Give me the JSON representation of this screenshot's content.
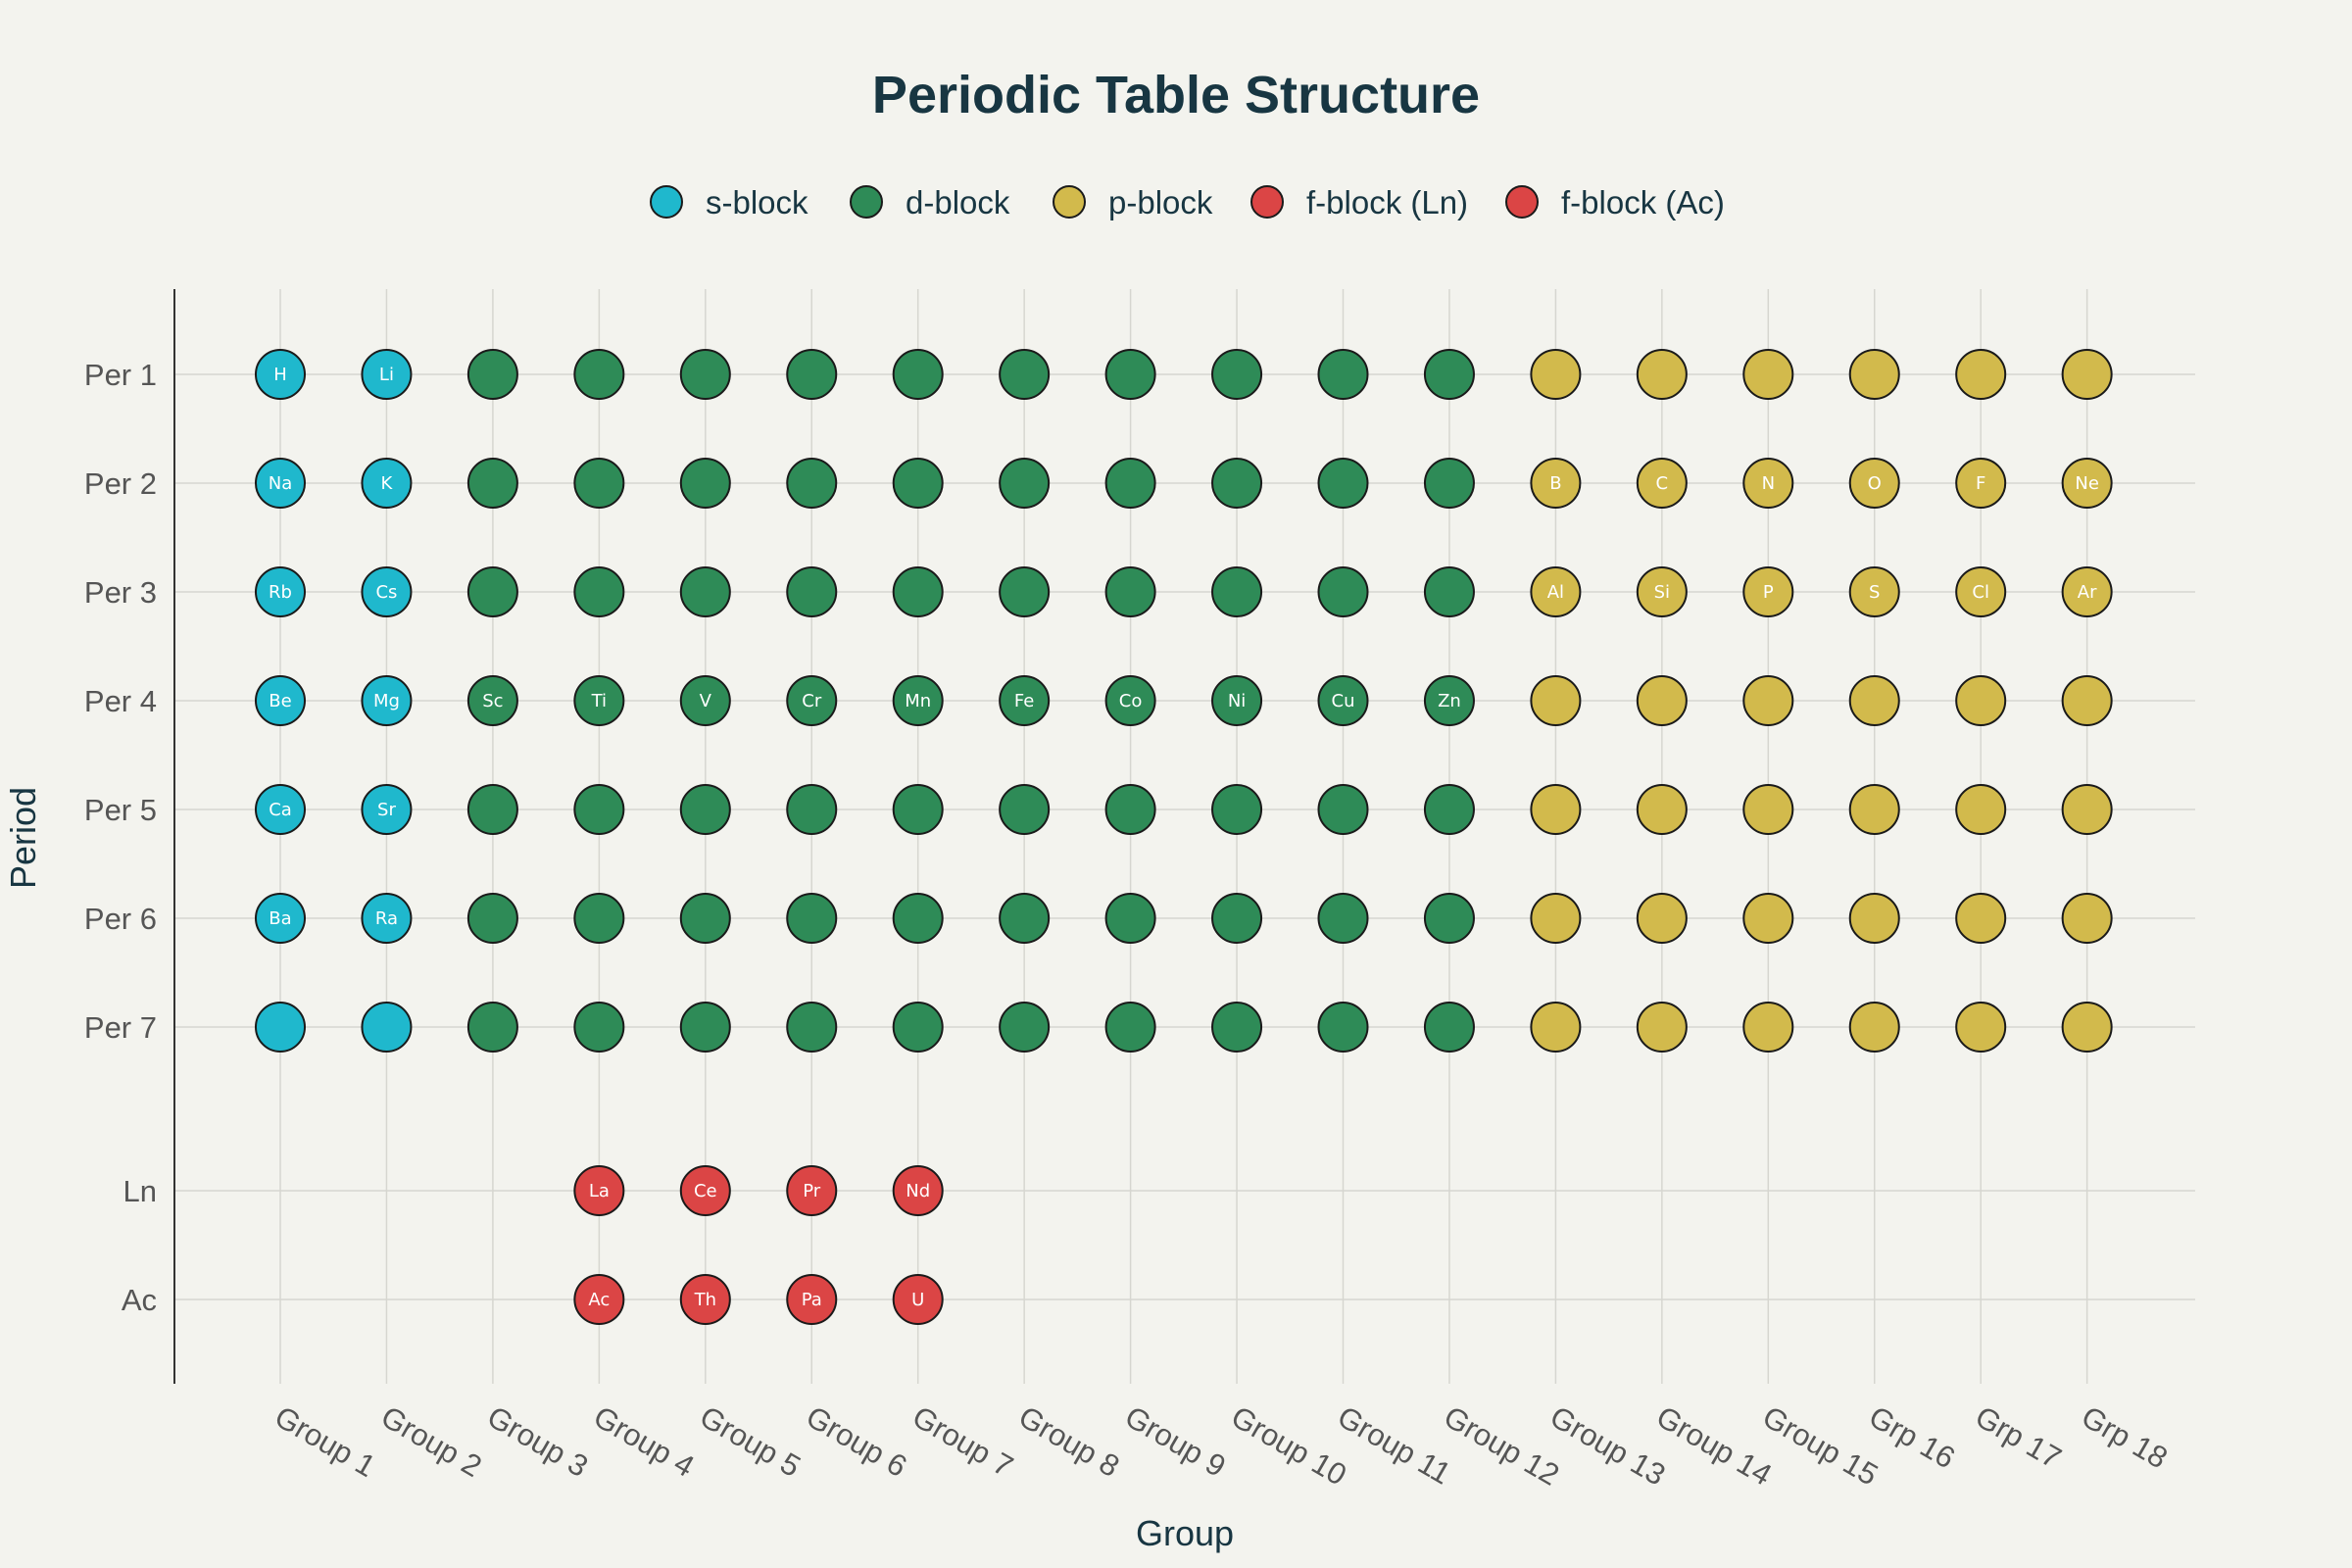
{
  "chart_data": {
    "type": "scatter",
    "title": "Periodic Table Structure",
    "xlabel": "Group",
    "ylabel": "Period",
    "grid": true,
    "legend_placement": "top-center",
    "x_categories": [
      "Group 1",
      "Group 2",
      "Group 3",
      "Group 4",
      "Group 5",
      "Group 6",
      "Group 7",
      "Group 8",
      "Group 9",
      "Group 10",
      "Group 11",
      "Group 12",
      "Group 13",
      "Group 14",
      "Group 15",
      "Grp 16",
      "Grp 17",
      "Grp 18"
    ],
    "y_categories": [
      "Per 1",
      "Per 2",
      "Per 3",
      "Per 4",
      "Per 5",
      "Per 6",
      "Per 7",
      "Ln",
      "Ac"
    ],
    "series": [
      {
        "name": "s-block",
        "color": "#1fb8cd",
        "points": [
          {
            "x": "Group 1",
            "y": "Per 1",
            "label": "H"
          },
          {
            "x": "Group 2",
            "y": "Per 1",
            "label": "Li"
          },
          {
            "x": "Group 1",
            "y": "Per 2",
            "label": "Na"
          },
          {
            "x": "Group 2",
            "y": "Per 2",
            "label": "K"
          },
          {
            "x": "Group 1",
            "y": "Per 3",
            "label": "Rb"
          },
          {
            "x": "Group 2",
            "y": "Per 3",
            "label": "Cs"
          },
          {
            "x": "Group 1",
            "y": "Per 4",
            "label": "Be"
          },
          {
            "x": "Group 2",
            "y": "Per 4",
            "label": "Mg"
          },
          {
            "x": "Group 1",
            "y": "Per 5",
            "label": "Ca"
          },
          {
            "x": "Group 2",
            "y": "Per 5",
            "label": "Sr"
          },
          {
            "x": "Group 1",
            "y": "Per 6",
            "label": "Ba"
          },
          {
            "x": "Group 2",
            "y": "Per 6",
            "label": "Ra"
          },
          {
            "x": "Group 1",
            "y": "Per 7",
            "label": ""
          },
          {
            "x": "Group 2",
            "y": "Per 7",
            "label": ""
          }
        ]
      },
      {
        "name": "d-block",
        "color": "#2e8b57",
        "groups": [
          "Group 3",
          "Group 4",
          "Group 5",
          "Group 6",
          "Group 7",
          "Group 8",
          "Group 9",
          "Group 10",
          "Group 11",
          "Group 12"
        ],
        "periods": [
          "Per 1",
          "Per 2",
          "Per 3",
          "Per 4",
          "Per 5",
          "Per 6",
          "Per 7"
        ],
        "labels": {
          "Per 4": [
            "Sc",
            "Ti",
            "V",
            "Cr",
            "Mn",
            "Fe",
            "Co",
            "Ni",
            "Cu",
            "Zn"
          ]
        }
      },
      {
        "name": "p-block",
        "color": "#d2ba4c",
        "groups": [
          "Group 13",
          "Group 14",
          "Group 15",
          "Grp 16",
          "Grp 17",
          "Grp 18"
        ],
        "periods": [
          "Per 1",
          "Per 2",
          "Per 3",
          "Per 4",
          "Per 5",
          "Per 6",
          "Per 7"
        ],
        "labels": {
          "Per 2": [
            "B",
            "C",
            "N",
            "O",
            "F",
            "Ne"
          ],
          "Per 3": [
            "Al",
            "Si",
            "P",
            "S",
            "Cl",
            "Ar"
          ]
        }
      },
      {
        "name": "f-block (Ln)",
        "color": "#db4545",
        "points": [
          {
            "x": "Group 4",
            "y": "Ln",
            "label": "La"
          },
          {
            "x": "Group 5",
            "y": "Ln",
            "label": "Ce"
          },
          {
            "x": "Group 6",
            "y": "Ln",
            "label": "Pr"
          },
          {
            "x": "Group 7",
            "y": "Ln",
            "label": "Nd"
          }
        ]
      },
      {
        "name": "f-block (Ac)",
        "color": "#db4545",
        "points": [
          {
            "x": "Group 4",
            "y": "Ac",
            "label": "Ac"
          },
          {
            "x": "Group 5",
            "y": "Ac",
            "label": "Th"
          },
          {
            "x": "Group 6",
            "y": "Ac",
            "label": "Pa"
          },
          {
            "x": "Group 7",
            "y": "Ac",
            "label": "U"
          }
        ]
      }
    ]
  }
}
